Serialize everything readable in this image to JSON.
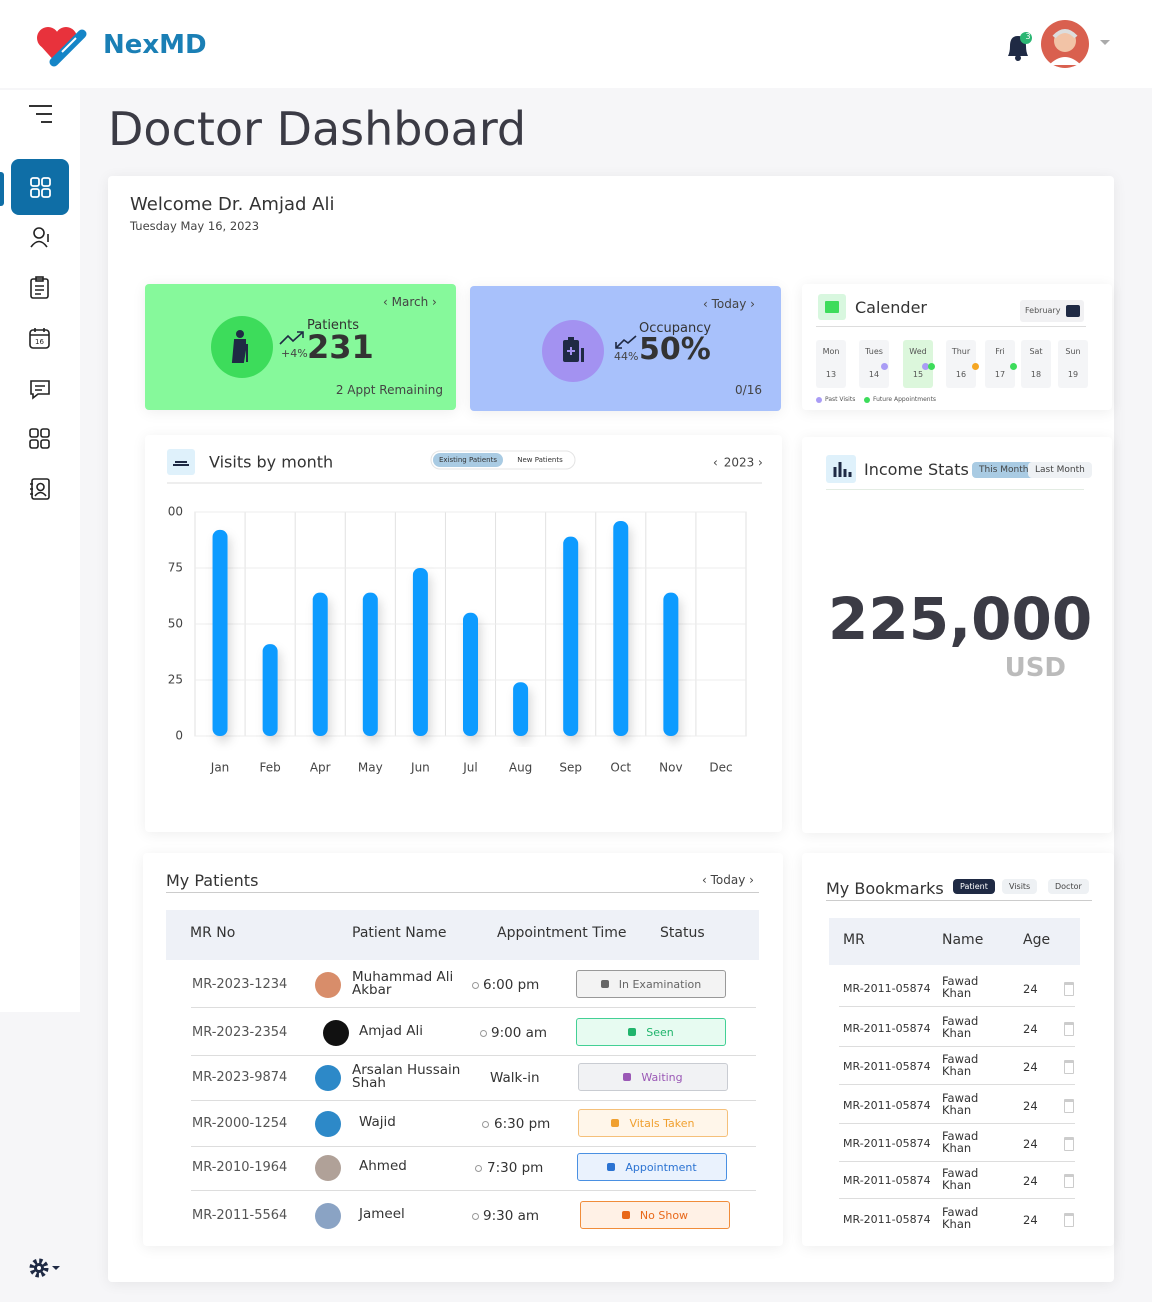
{
  "brand": "NexMD",
  "notification_count": "3",
  "page_title": "Doctor Dashboard",
  "welcome": {
    "greeting": "Welcome Dr. Amjad Ali",
    "date": "Tuesday May 16, 2023"
  },
  "patients_card": {
    "period": "March",
    "label": "Patients",
    "change": "+4%",
    "value": "231",
    "footer": "2 Appt Remaining"
  },
  "occupancy_card": {
    "period": "Today",
    "label": "Occupancy",
    "change": "44%",
    "value": "50%",
    "footer": "0/16"
  },
  "calendar": {
    "title": "Calender",
    "month": "February",
    "days": [
      {
        "name": "Mon",
        "date": "13"
      },
      {
        "name": "Tues",
        "date": "14"
      },
      {
        "name": "Wed",
        "date": "15"
      },
      {
        "name": "Thur",
        "date": "16"
      },
      {
        "name": "Fri",
        "date": "17"
      },
      {
        "name": "Sat",
        "date": "18"
      },
      {
        "name": "Sun",
        "date": "19"
      }
    ],
    "legend": [
      "Past Visits",
      "Future Appointments"
    ]
  },
  "visits_chart": {
    "type": "bar",
    "title": "Visits by month",
    "tabs": [
      "Existing Patients",
      "New Patients"
    ],
    "year": "2023",
    "categories": [
      "Jan",
      "Feb",
      "Apr",
      "May",
      "Jun",
      "Jul",
      "Aug",
      "Sep",
      "Oct",
      "Nov",
      "Dec"
    ],
    "values": [
      92,
      41,
      64,
      64,
      75,
      55,
      24,
      89,
      96,
      64,
      null
    ],
    "color": "#0d9bff",
    "ylim": [
      0,
      100
    ],
    "yticks": [
      0,
      25,
      50,
      75,
      {
        "value": 100,
        "label": "00"
      }
    ],
    "grid": true
  },
  "income": {
    "title": "Income Stats",
    "tabs": [
      "This Month",
      "Last Month"
    ],
    "value": "225,000",
    "currency": "USD"
  },
  "patients_table": {
    "title": "My Patients",
    "period": "Today",
    "columns": [
      "MR No",
      "Patient Name",
      "Appointment Time",
      "Status"
    ],
    "rows": [
      [
        "MR-2023-1234",
        "Muhammad Ali Akbar",
        "6:00 pm",
        "In Examination"
      ],
      [
        "MR-2023-2354",
        "Amjad Ali",
        "9:00 am",
        "Seen"
      ],
      [
        "MR-2023-9874",
        "Arsalan Hussain Shah",
        "Walk-in",
        "Waiting"
      ],
      [
        "MR-2000-1254",
        "Wajid",
        "6:30 pm",
        "Vitals Taken"
      ],
      [
        "MR-2010-1964",
        "Ahmed",
        "7:30 pm",
        "Appointment"
      ],
      [
        "MR-2011-5564",
        "Jameel",
        "9:30 am",
        "No Show"
      ]
    ]
  },
  "bookmarks": {
    "title": "My Bookmarks",
    "tabs": [
      "Patient",
      "Visits",
      "Doctor"
    ],
    "columns": [
      "MR",
      "Name",
      "Age"
    ],
    "rows": [
      [
        "MR-2011-05874",
        "Fawad Khan",
        "24"
      ],
      [
        "MR-2011-05874",
        "Fawad Khan",
        "24"
      ],
      [
        "MR-2011-05874",
        "Fawad Khan",
        "24"
      ],
      [
        "MR-2011-05874",
        "Fawad Khan",
        "24"
      ],
      [
        "MR-2011-05874",
        "Fawad Khan",
        "24"
      ],
      [
        "MR-2011-05874",
        "Fawad Khan",
        "24"
      ],
      [
        "MR-2011-05874",
        "Fawad Khan",
        "24"
      ]
    ]
  }
}
